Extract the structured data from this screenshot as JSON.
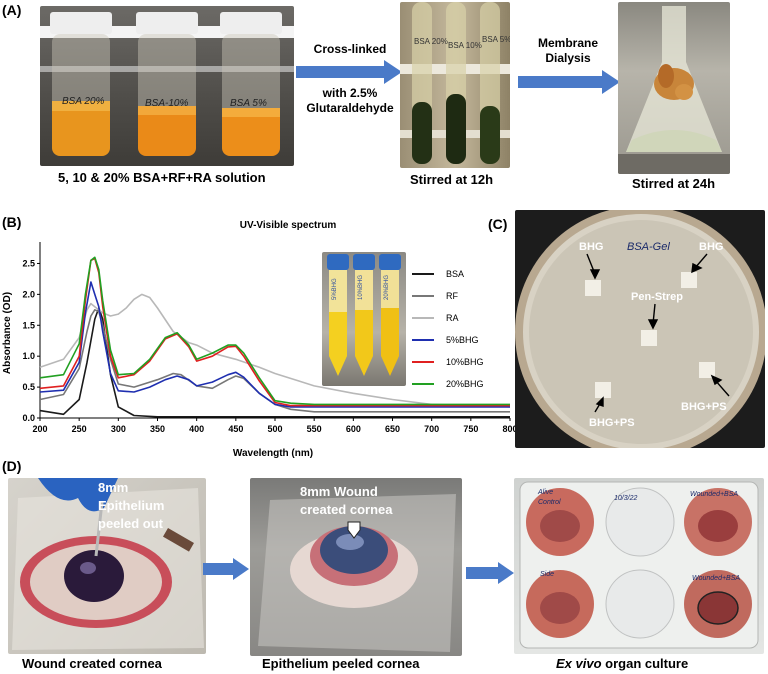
{
  "panelA": {
    "label": "(A)",
    "caption_left": "5, 10 & 20% BSA+RF+RA solution",
    "jar_labels": [
      "BSA 20%",
      "BSA-10%",
      "BSA 5%"
    ],
    "arrow1_top": "Cross-linked",
    "arrow1_bottom1": "with 2.5%",
    "arrow1_bottom2": "Glutaraldehyde",
    "caption_mid": "Stirred at 12h",
    "tube_labels": [
      "BSA 20%",
      "BSA 10%",
      "BSA 5%"
    ],
    "arrow2_top1": "Membrane",
    "arrow2_top2": "Dialysis",
    "caption_right": "Stirred at 24h"
  },
  "panelB": {
    "label": "(B)",
    "chart_data": {
      "type": "line",
      "title": "UV-Visible spectrum",
      "xlabel": "Wavelength (nm)",
      "ylabel": "Absorbance (OD)",
      "xlim": [
        200,
        800
      ],
      "ylim": [
        0,
        2.75
      ],
      "xticks": [
        200,
        250,
        300,
        350,
        400,
        450,
        500,
        550,
        600,
        650,
        700,
        750,
        800
      ],
      "yticks": [
        0.0,
        0.5,
        1.0,
        1.5,
        2.0,
        2.5
      ],
      "legend_position": "right",
      "series": [
        {
          "name": "BSA",
          "color": "#1a1a1a",
          "x": [
            200,
            230,
            250,
            260,
            270,
            275,
            280,
            290,
            300,
            320,
            350,
            400,
            450,
            500,
            800
          ],
          "y": [
            0.12,
            0.06,
            0.3,
            0.9,
            1.6,
            1.78,
            1.6,
            0.7,
            0.18,
            0.04,
            0.02,
            0.02,
            0.02,
            0.02,
            0.02
          ]
        },
        {
          "name": "RF",
          "color": "#777777",
          "x": [
            200,
            230,
            250,
            260,
            265,
            270,
            275,
            280,
            290,
            300,
            320,
            350,
            370,
            380,
            400,
            420,
            440,
            450,
            460,
            480,
            500,
            520,
            550,
            600,
            650,
            700,
            800
          ],
          "y": [
            0.3,
            0.38,
            0.8,
            1.4,
            1.65,
            1.75,
            1.72,
            1.5,
            0.95,
            0.55,
            0.5,
            0.62,
            0.72,
            0.7,
            0.52,
            0.48,
            0.62,
            0.68,
            0.64,
            0.4,
            0.22,
            0.14,
            0.1,
            0.1,
            0.1,
            0.1,
            0.1
          ]
        },
        {
          "name": "RA",
          "color": "#b8b8b8",
          "x": [
            200,
            230,
            250,
            260,
            265,
            270,
            280,
            290,
            300,
            310,
            320,
            330,
            340,
            350,
            370,
            390,
            400,
            420,
            450,
            480,
            500,
            530,
            550,
            600,
            650,
            700,
            800
          ],
          "y": [
            0.82,
            0.95,
            1.3,
            1.75,
            1.85,
            1.8,
            1.7,
            1.65,
            1.68,
            1.78,
            1.92,
            2.0,
            1.95,
            1.78,
            1.4,
            1.22,
            1.18,
            1.05,
            0.95,
            0.82,
            0.72,
            0.6,
            0.52,
            0.4,
            0.3,
            0.22,
            0.18
          ]
        },
        {
          "name": "5%BHG",
          "color": "#1f2fb0",
          "x": [
            200,
            230,
            250,
            258,
            265,
            270,
            275,
            280,
            290,
            300,
            320,
            340,
            360,
            375,
            390,
            400,
            420,
            440,
            450,
            460,
            480,
            500,
            520,
            550,
            600,
            650,
            700,
            800
          ],
          "y": [
            0.42,
            0.45,
            0.9,
            1.7,
            2.2,
            2.0,
            1.8,
            1.4,
            0.72,
            0.44,
            0.42,
            0.5,
            0.62,
            0.68,
            0.62,
            0.52,
            0.58,
            0.7,
            0.74,
            0.66,
            0.4,
            0.22,
            0.18,
            0.18,
            0.18,
            0.18,
            0.18,
            0.18
          ]
        },
        {
          "name": "10%BHG",
          "color": "#e02020",
          "x": [
            200,
            230,
            250,
            258,
            265,
            270,
            275,
            280,
            290,
            300,
            320,
            340,
            360,
            375,
            390,
            400,
            420,
            440,
            450,
            460,
            480,
            500,
            520,
            550,
            600,
            650,
            700,
            800
          ],
          "y": [
            0.48,
            0.52,
            1.0,
            1.9,
            2.55,
            2.58,
            2.35,
            1.8,
            1.0,
            0.65,
            0.7,
            0.92,
            1.28,
            1.36,
            1.15,
            0.92,
            1.0,
            1.15,
            1.16,
            1.0,
            0.6,
            0.25,
            0.2,
            0.2,
            0.2,
            0.2,
            0.2,
            0.2
          ]
        },
        {
          "name": "20%BHG",
          "color": "#22a022",
          "x": [
            200,
            230,
            250,
            258,
            265,
            270,
            275,
            280,
            290,
            300,
            320,
            340,
            360,
            375,
            390,
            400,
            420,
            440,
            450,
            460,
            480,
            500,
            520,
            550,
            600,
            650,
            700,
            800
          ],
          "y": [
            0.65,
            0.7,
            1.2,
            2.0,
            2.55,
            2.6,
            2.4,
            1.9,
            1.1,
            0.7,
            0.72,
            0.95,
            1.3,
            1.38,
            1.18,
            0.95,
            1.05,
            1.18,
            1.18,
            1.05,
            0.65,
            0.28,
            0.24,
            0.22,
            0.22,
            0.22,
            0.22,
            0.22
          ]
        }
      ]
    },
    "vial_labels": [
      "5%BHG",
      "10%BHG",
      "20%BHG"
    ]
  },
  "panelC": {
    "label": "(C)",
    "plate_text": "BSA-Gel",
    "labels": [
      "BHG",
      "BHG",
      "Pen-Strep",
      "BHG+PS",
      "BHG+PS"
    ]
  },
  "panelD": {
    "label": "(D)",
    "photo1_text1": "8mm",
    "photo1_text2": "Epithelium",
    "photo1_text3": "peeled out",
    "photo2_text1": "8mm Wound",
    "photo2_text2": "created cornea",
    "caption_left": "Wound created cornea",
    "caption_mid": "Epithelium peeled cornea",
    "caption_right_italic": "Ex vivo",
    "caption_right_rest": " organ culture",
    "well_labels": [
      "Alive",
      "Control",
      "10/3/22",
      "Wounded+BSA",
      "Side",
      "Wounded+BSA"
    ]
  },
  "colors": {
    "arrow": "#4a7ac8",
    "orange_liquid": "#e8951e",
    "dark_green": "#233015",
    "culture_red": "#c86a5e"
  }
}
